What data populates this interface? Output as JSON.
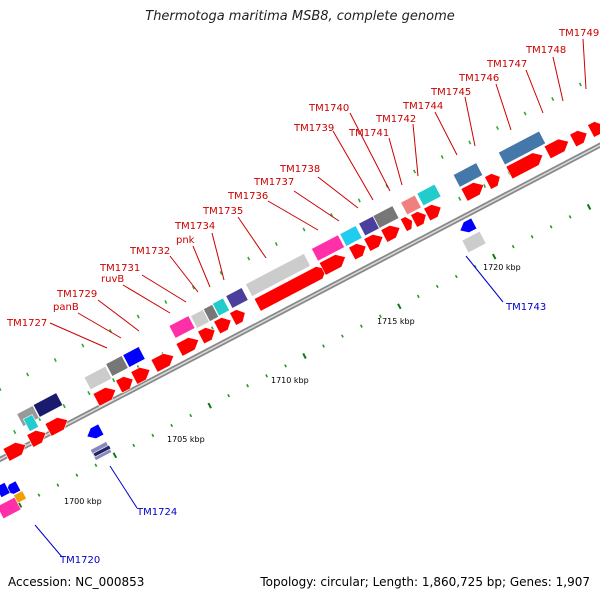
{
  "title": "Thermotoga maritima MSB8, complete genome",
  "footer": {
    "accession": "Accession: NC_000853",
    "summary": "Topology: circular; Length: 1,860,725 bp; Genes: 1,907"
  },
  "colors": {
    "backbone_outer": "#888888",
    "backbone_inner": "#bbbbbb",
    "label_red": "#cc0000",
    "label_blue": "#0000cc",
    "tick_dark": "#117711",
    "tick_light": "#33aa33"
  },
  "kbp_ticks": [
    "1700 kbp",
    "1705 kbp",
    "1710 kbp",
    "1715 kbp",
    "1720 kbp"
  ],
  "genes": [
    {
      "label": "TM1720",
      "strand": "reverse"
    },
    {
      "label": "TM1724",
      "strand": "reverse"
    },
    {
      "label": "TM1727",
      "strand": "forward"
    },
    {
      "label": "panB",
      "strand": "forward"
    },
    {
      "label": "TM1729",
      "strand": "forward"
    },
    {
      "label": "ruvB",
      "strand": "forward"
    },
    {
      "label": "TM1731",
      "strand": "forward"
    },
    {
      "label": "TM1732",
      "strand": "forward"
    },
    {
      "label": "pnk",
      "strand": "forward"
    },
    {
      "label": "TM1734",
      "strand": "forward"
    },
    {
      "label": "TM1735",
      "strand": "forward"
    },
    {
      "label": "TM1736",
      "strand": "forward"
    },
    {
      "label": "TM1737",
      "strand": "forward"
    },
    {
      "label": "TM1738",
      "strand": "forward"
    },
    {
      "label": "TM1739",
      "strand": "forward"
    },
    {
      "label": "TM1740",
      "strand": "forward"
    },
    {
      "label": "TM1741",
      "strand": "forward"
    },
    {
      "label": "TM1742",
      "strand": "forward"
    },
    {
      "label": "TM1743",
      "strand": "reverse"
    },
    {
      "label": "TM1744",
      "strand": "forward"
    },
    {
      "label": "TM1745",
      "strand": "forward"
    },
    {
      "label": "TM1746",
      "strand": "forward"
    },
    {
      "label": "TM1747",
      "strand": "forward"
    },
    {
      "label": "TM1748",
      "strand": "forward"
    },
    {
      "label": "TM1749",
      "strand": "forward"
    }
  ]
}
